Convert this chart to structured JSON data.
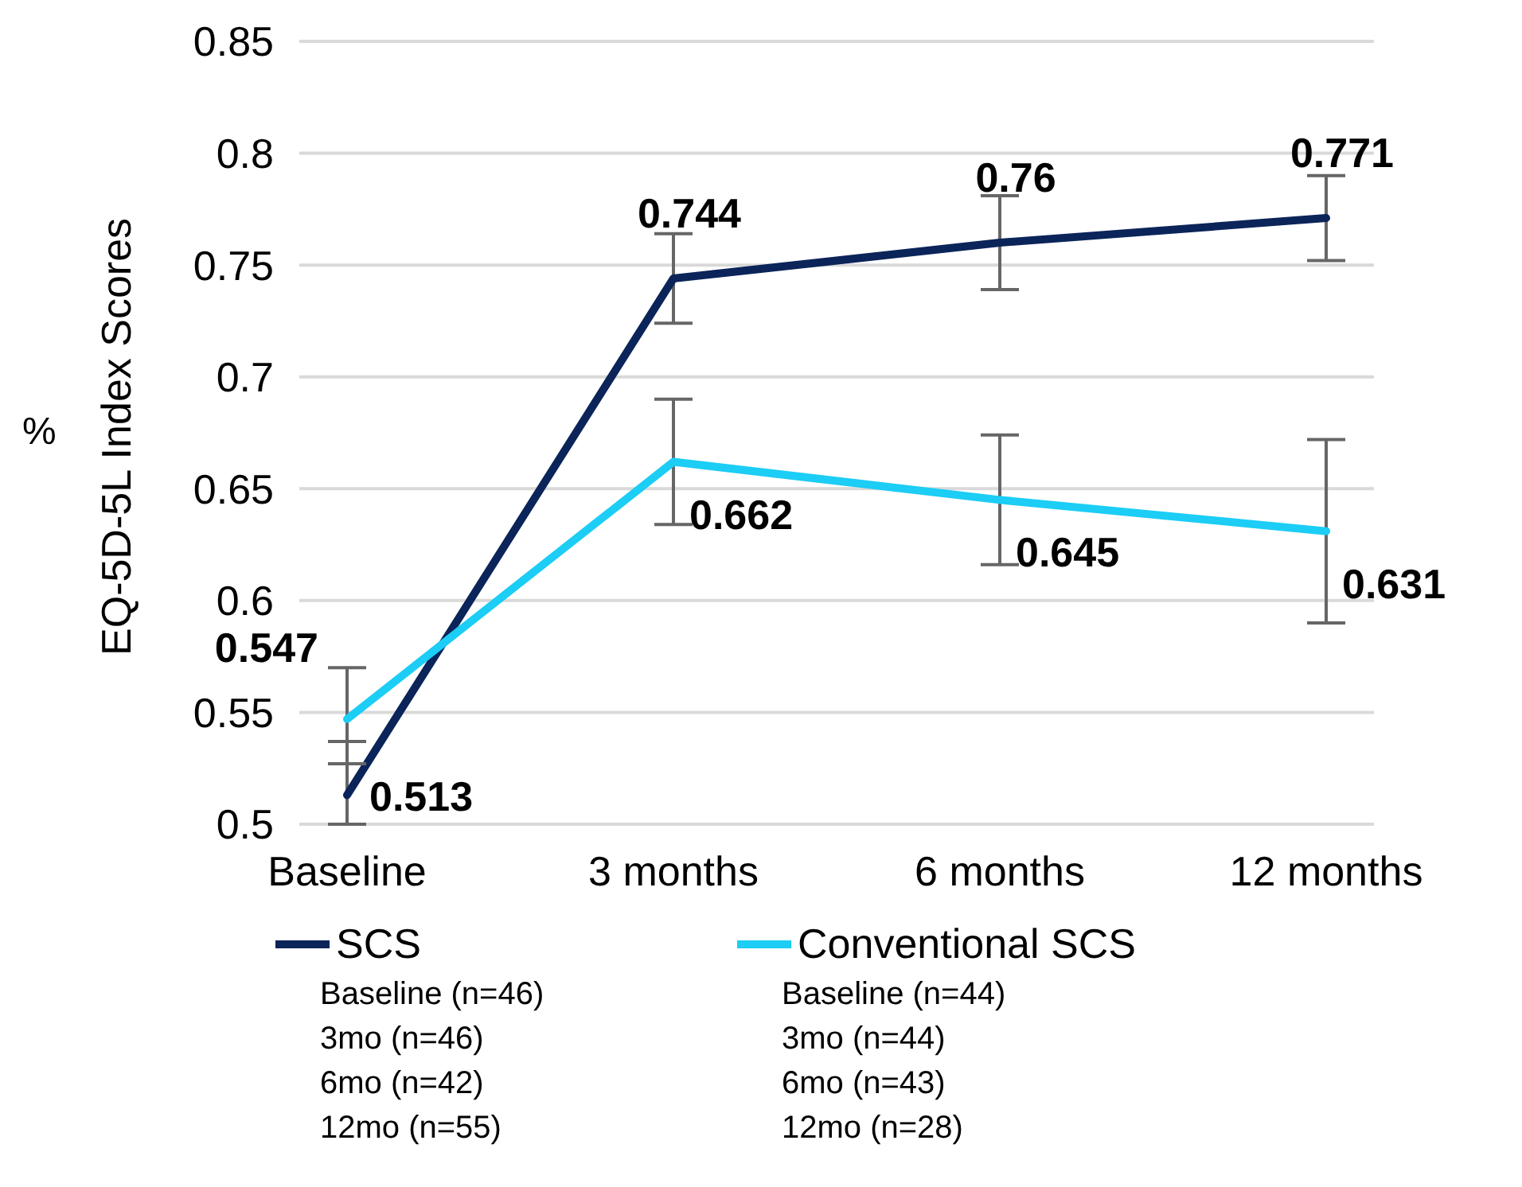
{
  "chart_data": {
    "type": "line",
    "ylabel": "EQ-5D-5L Index Scores",
    "categories": [
      "Baseline",
      "3 months",
      "6 months",
      "12 months"
    ],
    "series": [
      {
        "name": "SCS",
        "color": "#0b2459",
        "values": [
          0.513,
          0.744,
          0.76,
          0.771
        ],
        "errors": [
          [
            0.5,
            0.537
          ],
          0.02,
          0.021,
          0.019
        ]
      },
      {
        "name": "Conventional SCS",
        "color": "#1ccdf5",
        "values": [
          0.547,
          0.662,
          0.645,
          0.631
        ],
        "errors": [
          [
            0.527,
            0.57
          ],
          0.028,
          0.029,
          0.041
        ]
      }
    ],
    "ylim": [
      0.5,
      0.85
    ],
    "yticks": [
      0.5,
      0.55,
      0.6,
      0.65,
      0.7,
      0.75,
      0.8,
      0.85
    ],
    "grid": "y",
    "legend": "bottom",
    "marker": "none",
    "line_style": "solid",
    "data_labels": true,
    "annotations": [
      "%",
      "Baseline (n=46)",
      "3mo (n=46)",
      "6mo (n=42)",
      "12mo (n=55)",
      "Baseline (n=44)",
      "3mo (n=44)",
      "6mo (n=43)",
      "12mo (n=28)"
    ]
  }
}
